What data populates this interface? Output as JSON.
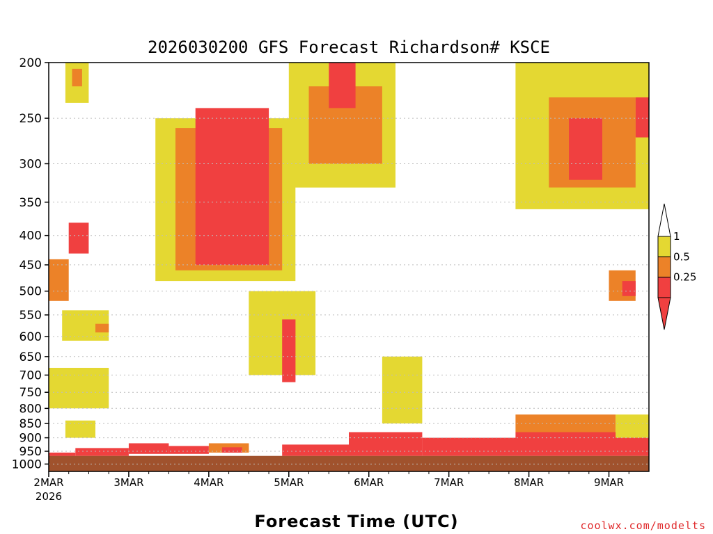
{
  "chart_data": {
    "type": "heatmap",
    "title": "2026030200 GFS Forecast Richardson# KSCE",
    "xlabel": "Forecast Time (UTC)",
    "ylabel": "",
    "x_range_hours": [
      0,
      180
    ],
    "x_ticks": [
      {
        "hour": 0,
        "label": "2MAR",
        "sublabel": "2026"
      },
      {
        "hour": 24,
        "label": "3MAR"
      },
      {
        "hour": 48,
        "label": "4MAR"
      },
      {
        "hour": 72,
        "label": "5MAR"
      },
      {
        "hour": 96,
        "label": "6MAR"
      },
      {
        "hour": 120,
        "label": "7MAR"
      },
      {
        "hour": 144,
        "label": "8MAR"
      },
      {
        "hour": 168,
        "label": "9MAR"
      }
    ],
    "y_axis": {
      "scale": "log-pressure",
      "range_hPa": [
        1030,
        200
      ]
    },
    "y_ticks": [
      200,
      250,
      300,
      350,
      400,
      450,
      500,
      550,
      600,
      650,
      700,
      750,
      800,
      850,
      900,
      950,
      1000
    ],
    "legend": {
      "position": "right",
      "levels": [
        {
          "label": "1",
          "min": 0.5,
          "max": 1,
          "color": "#e4d832"
        },
        {
          "label": "0.5",
          "min": 0.25,
          "max": 0.5,
          "color": "#ec8228"
        },
        {
          "label": "0.25",
          "min": null,
          "max": 0.25,
          "color": "#f04040"
        }
      ],
      "upper_extension_color": "#ffffff",
      "lower_extension_color": "#f04040"
    },
    "ground": {
      "color": "#a0522d",
      "surface_pressure_hPa": 968
    },
    "regions": [
      {
        "h0": 5,
        "h1": 12,
        "p0": 200,
        "p1": 235,
        "cat": "y"
      },
      {
        "h0": 7,
        "h1": 10,
        "p0": 205,
        "p1": 220,
        "cat": "o"
      },
      {
        "h0": 0,
        "h1": 6,
        "p0": 440,
        "p1": 520,
        "cat": "o"
      },
      {
        "h0": 6,
        "h1": 12,
        "p0": 380,
        "p1": 430,
        "cat": "r"
      },
      {
        "h0": 4,
        "h1": 18,
        "p0": 540,
        "p1": 610,
        "cat": "y"
      },
      {
        "h0": 14,
        "h1": 18,
        "p0": 570,
        "p1": 590,
        "cat": "o"
      },
      {
        "h0": 0,
        "h1": 18,
        "p0": 680,
        "p1": 800,
        "cat": "y"
      },
      {
        "h0": 5,
        "h1": 14,
        "p0": 840,
        "p1": 900,
        "cat": "y"
      },
      {
        "h0": 0,
        "h1": 8,
        "p0": 955,
        "p1": 968,
        "cat": "r"
      },
      {
        "h0": 8,
        "h1": 24,
        "p0": 938,
        "p1": 968,
        "cat": "r"
      },
      {
        "h0": 24,
        "h1": 36,
        "p0": 920,
        "p1": 960,
        "cat": "r"
      },
      {
        "h0": 36,
        "h1": 48,
        "p0": 930,
        "p1": 960,
        "cat": "r"
      },
      {
        "h0": 48,
        "h1": 60,
        "p0": 920,
        "p1": 955,
        "cat": "o"
      },
      {
        "h0": 52,
        "h1": 58,
        "p0": 935,
        "p1": 955,
        "cat": "r"
      },
      {
        "h0": 70,
        "h1": 90,
        "p0": 925,
        "p1": 968,
        "cat": "r"
      },
      {
        "h0": 90,
        "h1": 112,
        "p0": 880,
        "p1": 968,
        "cat": "r"
      },
      {
        "h0": 112,
        "h1": 140,
        "p0": 900,
        "p1": 968,
        "cat": "r"
      },
      {
        "h0": 140,
        "h1": 180,
        "p0": 880,
        "p1": 968,
        "cat": "r"
      },
      {
        "h0": 140,
        "h1": 170,
        "p0": 820,
        "p1": 880,
        "cat": "o"
      },
      {
        "h0": 170,
        "h1": 180,
        "p0": 820,
        "p1": 900,
        "cat": "y"
      },
      {
        "h0": 168,
        "h1": 176,
        "p0": 460,
        "p1": 520,
        "cat": "o"
      },
      {
        "h0": 172,
        "h1": 176,
        "p0": 480,
        "p1": 510,
        "cat": "r"
      },
      {
        "h0": 32,
        "h1": 74,
        "p0": 250,
        "p1": 480,
        "cat": "y"
      },
      {
        "h0": 38,
        "h1": 70,
        "p0": 260,
        "p1": 460,
        "cat": "o"
      },
      {
        "h0": 44,
        "h1": 66,
        "p0": 240,
        "p1": 450,
        "cat": "r"
      },
      {
        "h0": 72,
        "h1": 104,
        "p0": 200,
        "p1": 330,
        "cat": "y"
      },
      {
        "h0": 78,
        "h1": 100,
        "p0": 220,
        "p1": 300,
        "cat": "o"
      },
      {
        "h0": 84,
        "h1": 92,
        "p0": 200,
        "p1": 240,
        "cat": "r"
      },
      {
        "h0": 140,
        "h1": 180,
        "p0": 200,
        "p1": 360,
        "cat": "y"
      },
      {
        "h0": 150,
        "h1": 176,
        "p0": 230,
        "p1": 330,
        "cat": "o"
      },
      {
        "h0": 156,
        "h1": 166,
        "p0": 250,
        "p1": 320,
        "cat": "r"
      },
      {
        "h0": 176,
        "h1": 180,
        "p0": 230,
        "p1": 270,
        "cat": "r"
      },
      {
        "h0": 60,
        "h1": 80,
        "p0": 500,
        "p1": 700,
        "cat": "y"
      },
      {
        "h0": 70,
        "h1": 74,
        "p0": 560,
        "p1": 720,
        "cat": "r"
      },
      {
        "h0": 100,
        "h1": 112,
        "p0": 650,
        "p1": 850,
        "cat": "y"
      }
    ]
  },
  "credit": "coolwx.com/modelts"
}
